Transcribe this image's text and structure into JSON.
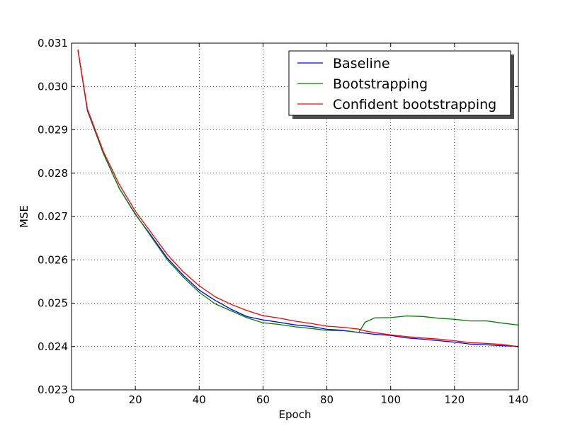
{
  "chart_data": {
    "type": "line",
    "title": "",
    "xlabel": "Epoch",
    "ylabel": "MSE",
    "xlim": [
      0,
      140
    ],
    "ylim": [
      0.023,
      0.031
    ],
    "xticks": [
      0,
      20,
      40,
      60,
      80,
      100,
      120,
      140
    ],
    "xtick_labels": [
      "0",
      "20",
      "40",
      "60",
      "80",
      "100",
      "120",
      "140"
    ],
    "yticks": [
      0.023,
      0.024,
      0.025,
      0.026,
      0.027,
      0.028,
      0.029,
      0.03,
      0.031
    ],
    "ytick_labels": [
      "0.023",
      "0.024",
      "0.025",
      "0.026",
      "0.027",
      "0.028",
      "0.029",
      "0.030",
      "0.031"
    ],
    "grid": true,
    "legend_position": "top-right",
    "x": [
      2,
      5,
      10,
      15,
      20,
      25,
      30,
      35,
      40,
      45,
      50,
      55,
      60,
      65,
      70,
      75,
      80,
      85,
      90,
      92,
      95,
      100,
      105,
      110,
      115,
      120,
      125,
      130,
      135,
      140
    ],
    "series": [
      {
        "name": "Baseline",
        "color": "#0000ff",
        "values": [
          0.03085,
          0.02945,
          0.02845,
          0.02765,
          0.02705,
          0.02655,
          0.02605,
          0.02565,
          0.0253,
          0.02505,
          0.02485,
          0.0247,
          0.0246,
          0.02455,
          0.0245,
          0.02445,
          0.0244,
          0.02437,
          0.02433,
          0.0243,
          0.02428,
          0.02425,
          0.0242,
          0.02418,
          0.02414,
          0.0241,
          0.02407,
          0.02405,
          0.02402,
          0.02399
        ]
      },
      {
        "name": "Bootstrapping",
        "color": "#008000",
        "values": [
          0.03085,
          0.02945,
          0.02845,
          0.02765,
          0.02705,
          0.02652,
          0.026,
          0.0256,
          0.02525,
          0.025,
          0.02482,
          0.02466,
          0.02455,
          0.0245,
          0.02446,
          0.02442,
          0.02438,
          0.02435,
          0.02432,
          0.02455,
          0.02465,
          0.02468,
          0.0247,
          0.02468,
          0.02466,
          0.02462,
          0.0246,
          0.02458,
          0.02455,
          0.0245
        ]
      },
      {
        "name": "Confident bootstrapping",
        "color": "#ff0000",
        "values": [
          0.03085,
          0.02948,
          0.0285,
          0.02772,
          0.02712,
          0.02662,
          0.02612,
          0.02572,
          0.0254,
          0.02515,
          0.02496,
          0.02482,
          0.02472,
          0.02465,
          0.02458,
          0.02452,
          0.02447,
          0.02443,
          0.0244,
          0.02436,
          0.02432,
          0.02428,
          0.02424,
          0.0242,
          0.02416,
          0.02413,
          0.0241,
          0.02407,
          0.02404,
          0.02401
        ]
      }
    ]
  }
}
